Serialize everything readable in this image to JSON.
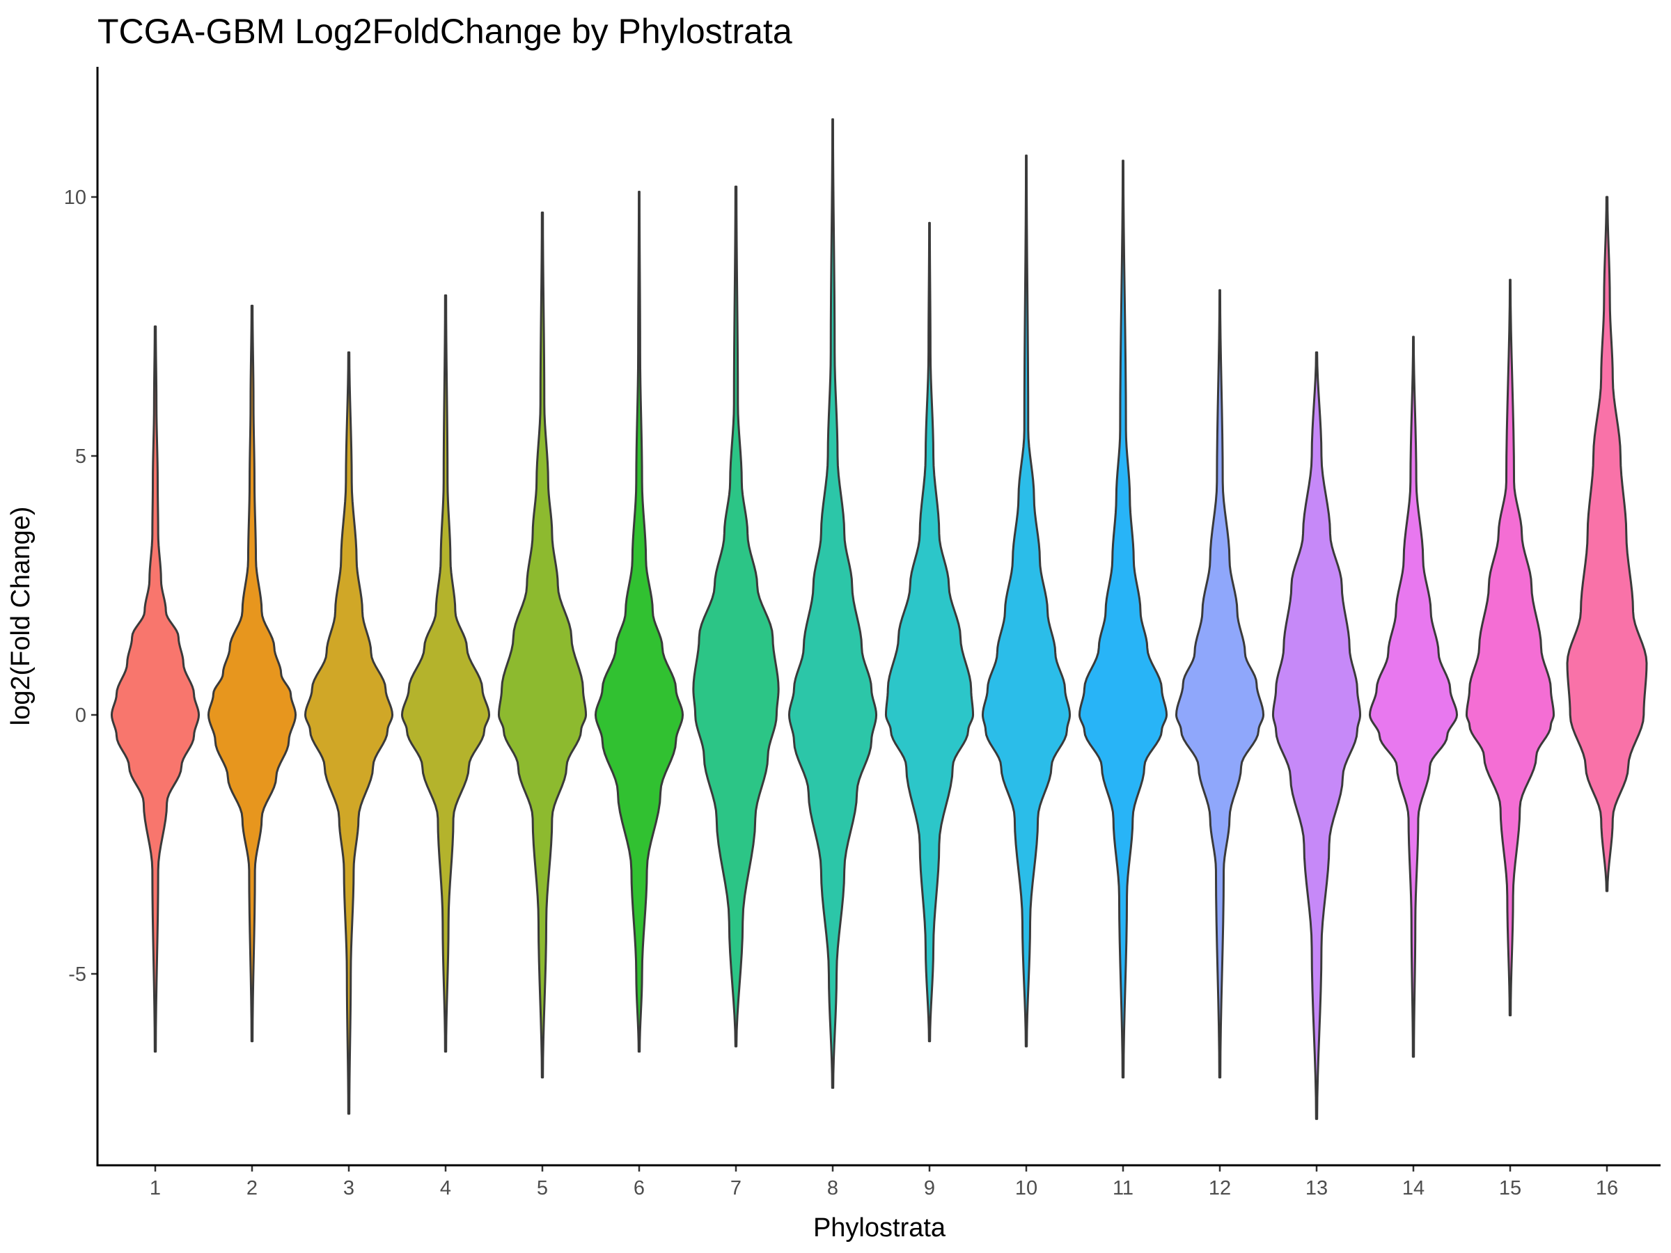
{
  "chart_data": {
    "type": "violin",
    "title": "TCGA-GBM Log2FoldChange by Phylostrata",
    "xlabel": "Phylostrata",
    "ylabel": "log2(Fold Change)",
    "categories": [
      "1",
      "2",
      "3",
      "4",
      "5",
      "6",
      "7",
      "8",
      "9",
      "10",
      "11",
      "12",
      "13",
      "14",
      "15",
      "16"
    ],
    "yticks": [
      -5,
      0,
      5,
      10
    ],
    "ytick_labels": [
      "-5",
      "0",
      "5",
      "10"
    ],
    "ylim": [
      -8.5,
      12.5
    ],
    "grid": false,
    "legend": "none",
    "colors": [
      "#F8766D",
      "#E7961E",
      "#D0A727",
      "#B4B32C",
      "#8DBA2F",
      "#31C131",
      "#2CC586",
      "#2CC6A8",
      "#2CC6C9",
      "#2BBDE9",
      "#28B4F7",
      "#8FA7FB",
      "#C689F8",
      "#E878EF",
      "#F46ED4",
      "#F972A8"
    ],
    "series": [
      {
        "category": "1",
        "min": -6.5,
        "max": 7.5,
        "width": [
          [
            -6.5,
            0.005
          ],
          [
            -3,
            0.03
          ],
          [
            -1.7,
            0.12
          ],
          [
            -1,
            0.27
          ],
          [
            -0.4,
            0.4
          ],
          [
            0,
            0.45
          ],
          [
            0.4,
            0.4
          ],
          [
            1,
            0.29
          ],
          [
            1.5,
            0.24
          ],
          [
            2,
            0.11
          ],
          [
            2.6,
            0.06
          ],
          [
            3.5,
            0.03
          ],
          [
            4.5,
            0.025
          ],
          [
            6,
            0.012
          ],
          [
            7.5,
            0.005
          ]
        ]
      },
      {
        "category": "2",
        "min": -6.3,
        "max": 7.9,
        "width": [
          [
            -6.3,
            0.005
          ],
          [
            -3,
            0.03
          ],
          [
            -2,
            0.1
          ],
          [
            -1.2,
            0.25
          ],
          [
            -0.5,
            0.38
          ],
          [
            0,
            0.45
          ],
          [
            0.4,
            0.4
          ],
          [
            0.8,
            0.3
          ],
          [
            1.3,
            0.23
          ],
          [
            2,
            0.1
          ],
          [
            3,
            0.04
          ],
          [
            4.5,
            0.025
          ],
          [
            6,
            0.015
          ],
          [
            7.9,
            0.005
          ]
        ]
      },
      {
        "category": "3",
        "min": -7.7,
        "max": 7.0,
        "width": [
          [
            -7.7,
            0.005
          ],
          [
            -5,
            0.02
          ],
          [
            -3,
            0.05
          ],
          [
            -2,
            0.1
          ],
          [
            -1,
            0.25
          ],
          [
            -0.3,
            0.4
          ],
          [
            0,
            0.45
          ],
          [
            0.5,
            0.38
          ],
          [
            1.2,
            0.23
          ],
          [
            2,
            0.14
          ],
          [
            3,
            0.08
          ],
          [
            4.5,
            0.03
          ],
          [
            7,
            0.005
          ]
        ]
      },
      {
        "category": "4",
        "min": -6.5,
        "max": 8.1,
        "width": [
          [
            -6.5,
            0.005
          ],
          [
            -4,
            0.03
          ],
          [
            -2,
            0.08
          ],
          [
            -1,
            0.24
          ],
          [
            -0.3,
            0.4
          ],
          [
            0,
            0.45
          ],
          [
            0.5,
            0.38
          ],
          [
            1.3,
            0.22
          ],
          [
            2,
            0.1
          ],
          [
            3,
            0.05
          ],
          [
            4.5,
            0.02
          ],
          [
            8.1,
            0.005
          ]
        ]
      },
      {
        "category": "5",
        "min": -7.0,
        "max": 9.7,
        "width": [
          [
            -7,
            0.005
          ],
          [
            -4,
            0.04
          ],
          [
            -2,
            0.1
          ],
          [
            -1,
            0.25
          ],
          [
            -0.3,
            0.4
          ],
          [
            0,
            0.45
          ],
          [
            0.5,
            0.42
          ],
          [
            1.5,
            0.3
          ],
          [
            2.5,
            0.16
          ],
          [
            3.5,
            0.1
          ],
          [
            4.5,
            0.06
          ],
          [
            6,
            0.02
          ],
          [
            9.7,
            0.005
          ]
        ]
      },
      {
        "category": "6",
        "min": -6.5,
        "max": 10.1,
        "width": [
          [
            -6.5,
            0.005
          ],
          [
            -5,
            0.03
          ],
          [
            -3,
            0.08
          ],
          [
            -1.5,
            0.22
          ],
          [
            -0.5,
            0.38
          ],
          [
            0,
            0.45
          ],
          [
            0.5,
            0.38
          ],
          [
            1.3,
            0.24
          ],
          [
            2,
            0.14
          ],
          [
            3,
            0.07
          ],
          [
            4.5,
            0.03
          ],
          [
            7,
            0.01
          ],
          [
            10.1,
            0.003
          ]
        ]
      },
      {
        "category": "7",
        "min": -6.4,
        "max": 10.2,
        "width": [
          [
            -6.4,
            0.005
          ],
          [
            -4,
            0.07
          ],
          [
            -2,
            0.2
          ],
          [
            -0.8,
            0.33
          ],
          [
            0,
            0.42
          ],
          [
            0.5,
            0.44
          ],
          [
            1.5,
            0.38
          ],
          [
            2.5,
            0.22
          ],
          [
            3.5,
            0.12
          ],
          [
            4.5,
            0.06
          ],
          [
            6,
            0.02
          ],
          [
            10.2,
            0.005
          ]
        ]
      },
      {
        "category": "8",
        "min": -7.2,
        "max": 11.5,
        "width": [
          [
            -7.2,
            0.005
          ],
          [
            -5,
            0.04
          ],
          [
            -3,
            0.12
          ],
          [
            -1.5,
            0.25
          ],
          [
            -0.5,
            0.4
          ],
          [
            0,
            0.45
          ],
          [
            0.5,
            0.4
          ],
          [
            1.3,
            0.3
          ],
          [
            2.5,
            0.2
          ],
          [
            3.5,
            0.12
          ],
          [
            5,
            0.05
          ],
          [
            7,
            0.02
          ],
          [
            11.5,
            0.003
          ]
        ]
      },
      {
        "category": "9",
        "min": -6.3,
        "max": 9.5,
        "width": [
          [
            -6.3,
            0.005
          ],
          [
            -4.5,
            0.04
          ],
          [
            -2.5,
            0.1
          ],
          [
            -1,
            0.24
          ],
          [
            -0.3,
            0.4
          ],
          [
            0,
            0.45
          ],
          [
            0.5,
            0.43
          ],
          [
            1.5,
            0.32
          ],
          [
            2.5,
            0.2
          ],
          [
            3.5,
            0.1
          ],
          [
            5,
            0.04
          ],
          [
            7,
            0.01
          ],
          [
            9.5,
            0.003
          ]
        ]
      },
      {
        "category": "10",
        "min": -6.4,
        "max": 10.8,
        "width": [
          [
            -6.4,
            0.005
          ],
          [
            -4,
            0.04
          ],
          [
            -2,
            0.12
          ],
          [
            -1,
            0.26
          ],
          [
            -0.3,
            0.42
          ],
          [
            0,
            0.45
          ],
          [
            0.5,
            0.4
          ],
          [
            1.2,
            0.3
          ],
          [
            2,
            0.22
          ],
          [
            3,
            0.14
          ],
          [
            4.2,
            0.08
          ],
          [
            5.5,
            0.02
          ],
          [
            10.8,
            0.003
          ]
        ]
      },
      {
        "category": "11",
        "min": -7.0,
        "max": 10.7,
        "width": [
          [
            -7,
            0.005
          ],
          [
            -3.5,
            0.04
          ],
          [
            -2,
            0.1
          ],
          [
            -1,
            0.22
          ],
          [
            -0.3,
            0.4
          ],
          [
            0,
            0.45
          ],
          [
            0.5,
            0.4
          ],
          [
            1.3,
            0.25
          ],
          [
            2,
            0.18
          ],
          [
            3,
            0.11
          ],
          [
            4.2,
            0.07
          ],
          [
            5.5,
            0.03
          ],
          [
            10.7,
            0.003
          ]
        ]
      },
      {
        "category": "12",
        "min": -7.0,
        "max": 8.2,
        "width": [
          [
            -7,
            0.005
          ],
          [
            -3,
            0.04
          ],
          [
            -2,
            0.1
          ],
          [
            -1,
            0.22
          ],
          [
            -0.3,
            0.4
          ],
          [
            0,
            0.45
          ],
          [
            0.6,
            0.38
          ],
          [
            1.2,
            0.26
          ],
          [
            2,
            0.18
          ],
          [
            3,
            0.1
          ],
          [
            4.5,
            0.03
          ],
          [
            8.2,
            0.003
          ]
        ]
      },
      {
        "category": "13",
        "min": -7.8,
        "max": 7.0,
        "width": [
          [
            -7.8,
            0.005
          ],
          [
            -4.5,
            0.05
          ],
          [
            -2.5,
            0.13
          ],
          [
            -1.2,
            0.27
          ],
          [
            -0.3,
            0.42
          ],
          [
            0,
            0.45
          ],
          [
            0.5,
            0.42
          ],
          [
            1.3,
            0.34
          ],
          [
            2.5,
            0.26
          ],
          [
            3.5,
            0.14
          ],
          [
            5,
            0.05
          ],
          [
            7,
            0.005
          ]
        ]
      },
      {
        "category": "14",
        "min": -6.6,
        "max": 7.3,
        "width": [
          [
            -6.6,
            0.005
          ],
          [
            -4,
            0.02
          ],
          [
            -2,
            0.05
          ],
          [
            -1,
            0.17
          ],
          [
            -0.4,
            0.35
          ],
          [
            0,
            0.45
          ],
          [
            0.5,
            0.38
          ],
          [
            1.2,
            0.26
          ],
          [
            2,
            0.18
          ],
          [
            3,
            0.1
          ],
          [
            4.5,
            0.03
          ],
          [
            7.3,
            0.003
          ]
        ]
      },
      {
        "category": "15",
        "min": -5.8,
        "max": 8.4,
        "width": [
          [
            -5.8,
            0.005
          ],
          [
            -3.5,
            0.03
          ],
          [
            -1.8,
            0.1
          ],
          [
            -0.8,
            0.27
          ],
          [
            -0.2,
            0.42
          ],
          [
            0,
            0.45
          ],
          [
            0.5,
            0.42
          ],
          [
            1.3,
            0.32
          ],
          [
            2.5,
            0.22
          ],
          [
            3.5,
            0.12
          ],
          [
            4.5,
            0.04
          ],
          [
            8.4,
            0.003
          ]
        ]
      },
      {
        "category": "16",
        "min": -3.4,
        "max": 10.0,
        "width": [
          [
            -3.4,
            0.005
          ],
          [
            -2,
            0.06
          ],
          [
            -1,
            0.22
          ],
          [
            0,
            0.38
          ],
          [
            1,
            0.41
          ],
          [
            2,
            0.27
          ],
          [
            3.5,
            0.2
          ],
          [
            5,
            0.14
          ],
          [
            6.5,
            0.06
          ],
          [
            8,
            0.03
          ],
          [
            10,
            0.005
          ]
        ]
      }
    ]
  }
}
